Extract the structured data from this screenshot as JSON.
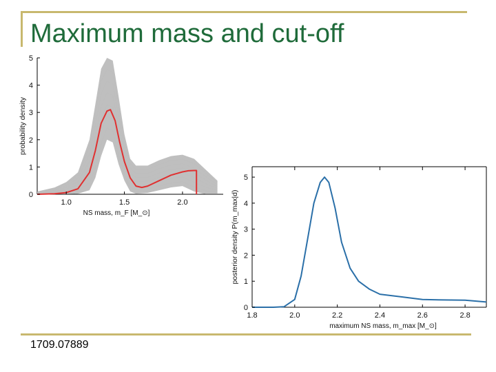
{
  "slide": {
    "title": "Maximum mass and cut-off",
    "footer": "1709.07889",
    "colors": {
      "title": "#1f6b3a",
      "frame": "#c8b86e"
    }
  },
  "chart_data": [
    {
      "type": "line",
      "title": "",
      "xlabel": "NS mass, m_F [M_⊙]",
      "ylabel": "probability density",
      "xlim": [
        0.75,
        2.35
      ],
      "ylim": [
        0,
        5
      ],
      "xticks": [
        "1.0",
        "1.5",
        "2.0"
      ],
      "xtick_values": [
        1.0,
        1.5,
        2.0
      ],
      "yticks": [
        "0",
        "1",
        "2",
        "3",
        "4",
        "5"
      ],
      "series": [
        {
          "color": "#e03030",
          "x": [
            0.75,
            0.9,
            1.0,
            1.1,
            1.2,
            1.25,
            1.3,
            1.35,
            1.38,
            1.42,
            1.46,
            1.5,
            1.55,
            1.6,
            1.65,
            1.7,
            1.8,
            1.9,
            2.0,
            2.05,
            2.1,
            2.12,
            2.12
          ],
          "y": [
            0.0,
            0.02,
            0.06,
            0.2,
            0.8,
            1.6,
            2.6,
            3.05,
            3.1,
            2.7,
            1.9,
            1.2,
            0.6,
            0.3,
            0.25,
            0.3,
            0.5,
            0.7,
            0.82,
            0.86,
            0.87,
            0.87,
            0.0
          ]
        }
      ],
      "gray_band": {
        "color": "#8a8a8a",
        "x": [
          0.75,
          0.9,
          1.0,
          1.1,
          1.2,
          1.25,
          1.3,
          1.35,
          1.4,
          1.45,
          1.5,
          1.55,
          1.6,
          1.7,
          1.8,
          1.9,
          2.0,
          2.1,
          2.2,
          2.3
        ],
        "upper": [
          0.1,
          0.25,
          0.45,
          0.8,
          2.0,
          3.3,
          4.6,
          5.0,
          4.9,
          3.6,
          2.2,
          1.3,
          1.05,
          1.05,
          1.25,
          1.4,
          1.45,
          1.3,
          0.9,
          0.5
        ],
        "lower": [
          0.0,
          0.0,
          0.0,
          0.02,
          0.15,
          0.6,
          1.4,
          2.0,
          1.9,
          1.1,
          0.5,
          0.1,
          0.02,
          0.05,
          0.15,
          0.25,
          0.3,
          0.1,
          0.0,
          0.0
        ]
      }
    },
    {
      "type": "line",
      "title": "",
      "xlabel": "maximum NS mass, m_max [M_⊙]",
      "ylabel": "posterior density P(m_max|d)",
      "xlim": [
        1.8,
        2.9
      ],
      "ylim": [
        0,
        5.4
      ],
      "xticks": [
        "1.8",
        "2.0",
        "2.2",
        "2.4",
        "2.6",
        "2.8"
      ],
      "xtick_values": [
        1.8,
        2.0,
        2.2,
        2.4,
        2.6,
        2.8
      ],
      "yticks": [
        "0",
        "1",
        "2",
        "3",
        "4",
        "5"
      ],
      "series": [
        {
          "color": "#2a6fa8",
          "x": [
            1.8,
            1.9,
            1.95,
            2.0,
            2.03,
            2.06,
            2.09,
            2.12,
            2.14,
            2.16,
            2.19,
            2.22,
            2.26,
            2.3,
            2.35,
            2.4,
            2.5,
            2.6,
            2.7,
            2.8,
            2.9
          ],
          "y": [
            0.0,
            0.0,
            0.02,
            0.3,
            1.2,
            2.6,
            4.0,
            4.8,
            5.0,
            4.8,
            3.8,
            2.5,
            1.5,
            1.0,
            0.7,
            0.5,
            0.4,
            0.3,
            0.28,
            0.27,
            0.2
          ]
        }
      ]
    }
  ]
}
